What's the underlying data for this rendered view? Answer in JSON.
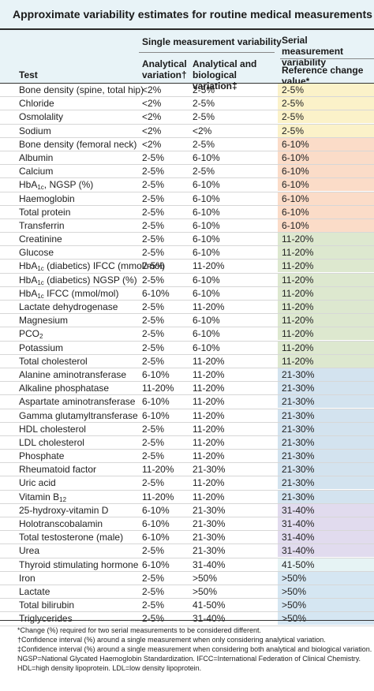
{
  "title": "Approximate variability estimates for routine medical measurements",
  "header": {
    "group1": "Single measurement variability",
    "group2": "Serial measurement variability",
    "col_test": "Test",
    "col_analytical": "Analytical variation†",
    "col_analytical_bio": "Analytical and biological variation‡",
    "col_reference": "Reference change value*"
  },
  "colors": {
    "header_bg": "#e8f3f7",
    "rcv_2_5": "#fbf2c9",
    "rcv_6_10": "#fbdcc8",
    "rcv_11_20": "#dde8cf",
    "rcv_21_30": "#d3e3ef",
    "rcv_31_40": "#e1dbee",
    "rcv_41_50": "#e6f3f4",
    "rcv_50plus": "#d5e6f2"
  },
  "rows": [
    {
      "test": "Bone density (spine, total hip)",
      "a": "<2%",
      "b": "2-5%",
      "c": "2-5%",
      "band": "rcv_2_5"
    },
    {
      "test": "Chloride",
      "a": "<2%",
      "b": "2-5%",
      "c": "2-5%",
      "band": "rcv_2_5"
    },
    {
      "test": "Osmolality",
      "a": "<2%",
      "b": "2-5%",
      "c": "2-5%",
      "band": "rcv_2_5"
    },
    {
      "test": "Sodium",
      "a": "<2%",
      "b": "<2%",
      "c": "2-5%",
      "band": "rcv_2_5"
    },
    {
      "test": "Bone density (femoral neck)",
      "a": "<2%",
      "b": "2-5%",
      "c": "6-10%",
      "band": "rcv_6_10"
    },
    {
      "test": "Albumin",
      "a": "2-5%",
      "b": "6-10%",
      "c": "6-10%",
      "band": "rcv_6_10"
    },
    {
      "test": "Calcium",
      "a": "2-5%",
      "b": "2-5%",
      "c": "6-10%",
      "band": "rcv_6_10"
    },
    {
      "test": "HbA",
      "sub": "1c",
      "tail": ", NGSP (%)",
      "a": "2-5%",
      "b": "6-10%",
      "c": "6-10%",
      "band": "rcv_6_10"
    },
    {
      "test": "Haemoglobin",
      "a": "2-5%",
      "b": "6-10%",
      "c": "6-10%",
      "band": "rcv_6_10"
    },
    {
      "test": "Total protein",
      "a": "2-5%",
      "b": "6-10%",
      "c": "6-10%",
      "band": "rcv_6_10"
    },
    {
      "test": "Transferrin",
      "a": "2-5%",
      "b": "6-10%",
      "c": "6-10%",
      "band": "rcv_6_10"
    },
    {
      "test": "Creatinine",
      "a": "2-5%",
      "b": "6-10%",
      "c": "11-20%",
      "band": "rcv_11_20"
    },
    {
      "test": "Glucose",
      "a": "2-5%",
      "b": "6-10%",
      "c": "11-20%",
      "band": "rcv_11_20"
    },
    {
      "test": "HbA",
      "sub": "1c",
      "tail": " (diabetics) IFCC (mmol/mol)",
      "a": "2-5%",
      "b": "11-20%",
      "c": "11-20%",
      "band": "rcv_11_20"
    },
    {
      "test": "HbA",
      "sub": "1c",
      "tail": " (diabetics) NGSP (%)",
      "a": "2-5%",
      "b": "6-10%",
      "c": "11-20%",
      "band": "rcv_11_20"
    },
    {
      "test": "HbA",
      "sub": "1c",
      "tail": " IFCC (mmol/mol)",
      "a": "6-10%",
      "b": "6-10%",
      "c": "11-20%",
      "band": "rcv_11_20"
    },
    {
      "test": "Lactate dehydrogenase",
      "a": "2-5%",
      "b": "11-20%",
      "c": "11-20%",
      "band": "rcv_11_20"
    },
    {
      "test": "Magnesium",
      "a": "2-5%",
      "b": "6-10%",
      "c": "11-20%",
      "band": "rcv_11_20"
    },
    {
      "test": "PCO",
      "sub": "2",
      "tail": "",
      "a": "2-5%",
      "b": "6-10%",
      "c": "11-20%",
      "band": "rcv_11_20"
    },
    {
      "test": "Potassium",
      "a": "2-5%",
      "b": "6-10%",
      "c": "11-20%",
      "band": "rcv_11_20"
    },
    {
      "test": "Total cholesterol",
      "a": "2-5%",
      "b": "11-20%",
      "c": "11-20%",
      "band": "rcv_11_20"
    },
    {
      "test": "Alanine aminotransferase",
      "a": "6-10%",
      "b": "11-20%",
      "c": "21-30%",
      "band": "rcv_21_30"
    },
    {
      "test": "Alkaline phosphatase",
      "a": "11-20%",
      "b": "11-20%",
      "c": "21-30%",
      "band": "rcv_21_30"
    },
    {
      "test": "Aspartate aminotransferase",
      "a": "6-10%",
      "b": "11-20%",
      "c": "21-30%",
      "band": "rcv_21_30"
    },
    {
      "test": "Gamma glutamyltransferase",
      "a": "6-10%",
      "b": "11-20%",
      "c": "21-30%",
      "band": "rcv_21_30"
    },
    {
      "test": "HDL cholesterol",
      "a": "2-5%",
      "b": "11-20%",
      "c": "21-30%",
      "band": "rcv_21_30"
    },
    {
      "test": "LDL cholesterol",
      "a": "2-5%",
      "b": "11-20%",
      "c": "21-30%",
      "band": "rcv_21_30"
    },
    {
      "test": "Phosphate",
      "a": "2-5%",
      "b": "11-20%",
      "c": "21-30%",
      "band": "rcv_21_30"
    },
    {
      "test": "Rheumatoid factor",
      "a": "11-20%",
      "b": "21-30%",
      "c": "21-30%",
      "band": "rcv_21_30"
    },
    {
      "test": "Uric acid",
      "a": "2-5%",
      "b": "11-20%",
      "c": "21-30%",
      "band": "rcv_21_30"
    },
    {
      "test": "Vitamin B",
      "sub": "12",
      "tail": "",
      "a": "11-20%",
      "b": "11-20%",
      "c": "21-30%",
      "band": "rcv_21_30"
    },
    {
      "test": "25-hydroxy-vitamin D",
      "a": "6-10%",
      "b": "21-30%",
      "c": "31-40%",
      "band": "rcv_31_40"
    },
    {
      "test": "Holotranscobalamin",
      "a": "6-10%",
      "b": "21-30%",
      "c": "31-40%",
      "band": "rcv_31_40"
    },
    {
      "test": "Total testosterone (male)",
      "a": "6-10%",
      "b": "21-30%",
      "c": "31-40%",
      "band": "rcv_31_40"
    },
    {
      "test": "Urea",
      "a": "2-5%",
      "b": "21-30%",
      "c": "31-40%",
      "band": "rcv_31_40"
    },
    {
      "test": "Thyroid stimulating hormone",
      "a": "6-10%",
      "b": "31-40%",
      "c": "41-50%",
      "band": "rcv_41_50"
    },
    {
      "test": "Iron",
      "a": "2-5%",
      "b": ">50%",
      "c": ">50%",
      "band": "rcv_50plus"
    },
    {
      "test": "Lactate",
      "a": "2-5%",
      "b": ">50%",
      "c": ">50%",
      "band": "rcv_50plus"
    },
    {
      "test": "Total bilirubin",
      "a": "2-5%",
      "b": "41-50%",
      "c": ">50%",
      "band": "rcv_50plus"
    },
    {
      "test": "Triglycerides",
      "a": "2-5%",
      "b": "31-40%",
      "c": ">50%",
      "band": "rcv_50plus"
    }
  ],
  "footnotes": [
    "*Change (%) required for two serial measurements to be considered different.",
    "†Confidence interval (%) around a single measurement when only considering analytical variation.",
    "‡Confidence interval (%) around a single measurement when considering both analytical and biological variation.",
    "NGSP=National Glycated Haemoglobin Standardization. IFCC=International Federation of Clinical Chemistry.",
    "HDL=high density lipoprotein. LDL=low density lipoprotein."
  ]
}
